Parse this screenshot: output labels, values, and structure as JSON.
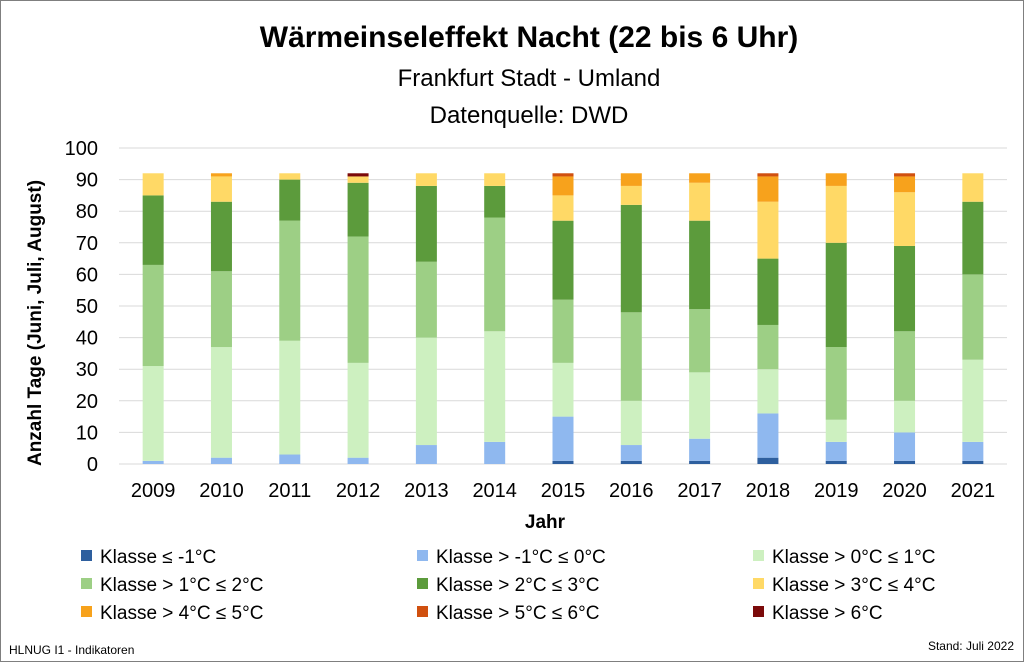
{
  "chart_data": {
    "type": "bar",
    "stacked": true,
    "title": "Wärmeinseleffekt Nacht (22 bis 6 Uhr)",
    "subtitle_lines": [
      "Frankfurt Stadt - Umland",
      "Datenquelle: DWD"
    ],
    "xlabel": "Jahr",
    "ylabel": "Anzahl Tage (Juni, Juli, August)",
    "ylim": [
      0,
      100
    ],
    "yticks": [
      0,
      10,
      20,
      30,
      40,
      50,
      60,
      70,
      80,
      90,
      100
    ],
    "grid": true,
    "legend_position": "bottom",
    "categories": [
      "2009",
      "2010",
      "2011",
      "2012",
      "2013",
      "2014",
      "2015",
      "2016",
      "2017",
      "2018",
      "2019",
      "2020",
      "2021"
    ],
    "series": [
      {
        "name": "Klasse ≤ -1°C",
        "color": "#2e5f9e",
        "values": [
          0,
          0,
          0,
          0,
          0,
          0,
          1,
          1,
          1,
          2,
          1,
          1,
          1
        ]
      },
      {
        "name": "Klasse > -1°C ≤ 0°C",
        "color": "#8fb8ef",
        "values": [
          1,
          2,
          3,
          2,
          6,
          7,
          14,
          5,
          7,
          14,
          6,
          9,
          6
        ]
      },
      {
        "name": "Klasse > 0°C ≤ 1°C",
        "color": "#cdf0c0",
        "values": [
          30,
          35,
          36,
          30,
          34,
          35,
          17,
          14,
          21,
          14,
          7,
          10,
          26
        ]
      },
      {
        "name": "Klasse > 1°C ≤ 2°C",
        "color": "#9dcf85",
        "values": [
          32,
          24,
          38,
          40,
          24,
          36,
          20,
          28,
          20,
          14,
          23,
          22,
          27
        ]
      },
      {
        "name": "Klasse > 2°C ≤ 3°C",
        "color": "#5c9b3c",
        "values": [
          22,
          22,
          13,
          17,
          24,
          10,
          25,
          34,
          28,
          21,
          33,
          27,
          23
        ]
      },
      {
        "name": "Klasse > 3°C ≤ 4°C",
        "color": "#ffd966",
        "values": [
          7,
          8,
          2,
          2,
          4,
          4,
          8,
          6,
          12,
          18,
          18,
          17,
          9
        ]
      },
      {
        "name": "Klasse > 4°C ≤ 5°C",
        "color": "#f7a21c",
        "values": [
          0,
          1,
          0,
          0,
          0,
          0,
          6,
          4,
          3,
          8,
          4,
          5,
          0
        ]
      },
      {
        "name": "Klasse > 5°C ≤ 6°C",
        "color": "#d0500f",
        "values": [
          0,
          0,
          0,
          0,
          0,
          0,
          1,
          0,
          0,
          1,
          0,
          1,
          0
        ]
      },
      {
        "name": "Klasse > 6°C",
        "color": "#7b0a0a",
        "values": [
          0,
          0,
          0,
          1,
          0,
          0,
          0,
          0,
          0,
          0,
          0,
          0,
          0
        ]
      }
    ]
  },
  "footer": {
    "left": "HLNUG I1 - Indikatoren",
    "right": "Stand: Juli 2022"
  }
}
